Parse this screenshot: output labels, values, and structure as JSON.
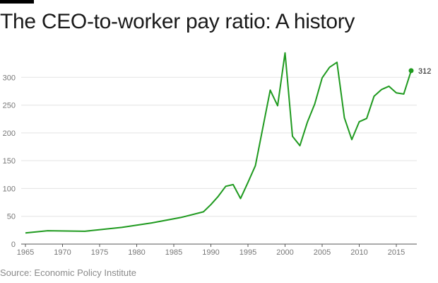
{
  "title": "The CEO-to-worker pay ratio: A history",
  "source": "Source: Economic Policy Institute",
  "colors": {
    "line": "#1f9a1f",
    "grid": "#e3e3e3",
    "axis": "#555555",
    "text": "#777777"
  },
  "chart_data": {
    "type": "line",
    "title": "The CEO-to-worker pay ratio: A history",
    "xlabel": "",
    "ylabel": "",
    "xlim": [
      1965,
      2018
    ],
    "ylim": [
      0,
      350
    ],
    "grid": "horizontal",
    "xticks": [
      1965,
      1970,
      1975,
      1980,
      1985,
      1990,
      1995,
      2000,
      2005,
      2010,
      2015
    ],
    "yticks": [
      0,
      50,
      100,
      150,
      200,
      250,
      300
    ],
    "series": [
      {
        "x": [
          1965,
          1968,
          1973,
          1978,
          1982,
          1986,
          1989,
          1990,
          1991,
          1992,
          1993,
          1994,
          1995,
          1996,
          1997,
          1998,
          1999,
          2000,
          2001,
          2002,
          2003,
          2004,
          2005,
          2006,
          2007,
          2008,
          2009,
          2010,
          2011,
          2012,
          2013,
          2014,
          2015,
          2016,
          2017
        ],
        "values": [
          20,
          24,
          23,
          30,
          38,
          48,
          58,
          71,
          86,
          104,
          107,
          82,
          111,
          141,
          209,
          277,
          249,
          344,
          194,
          177,
          219,
          252,
          299,
          318,
          327,
          227,
          188,
          220,
          226,
          266,
          278,
          284,
          272,
          270,
          312
        ]
      }
    ],
    "end_label": "312"
  }
}
